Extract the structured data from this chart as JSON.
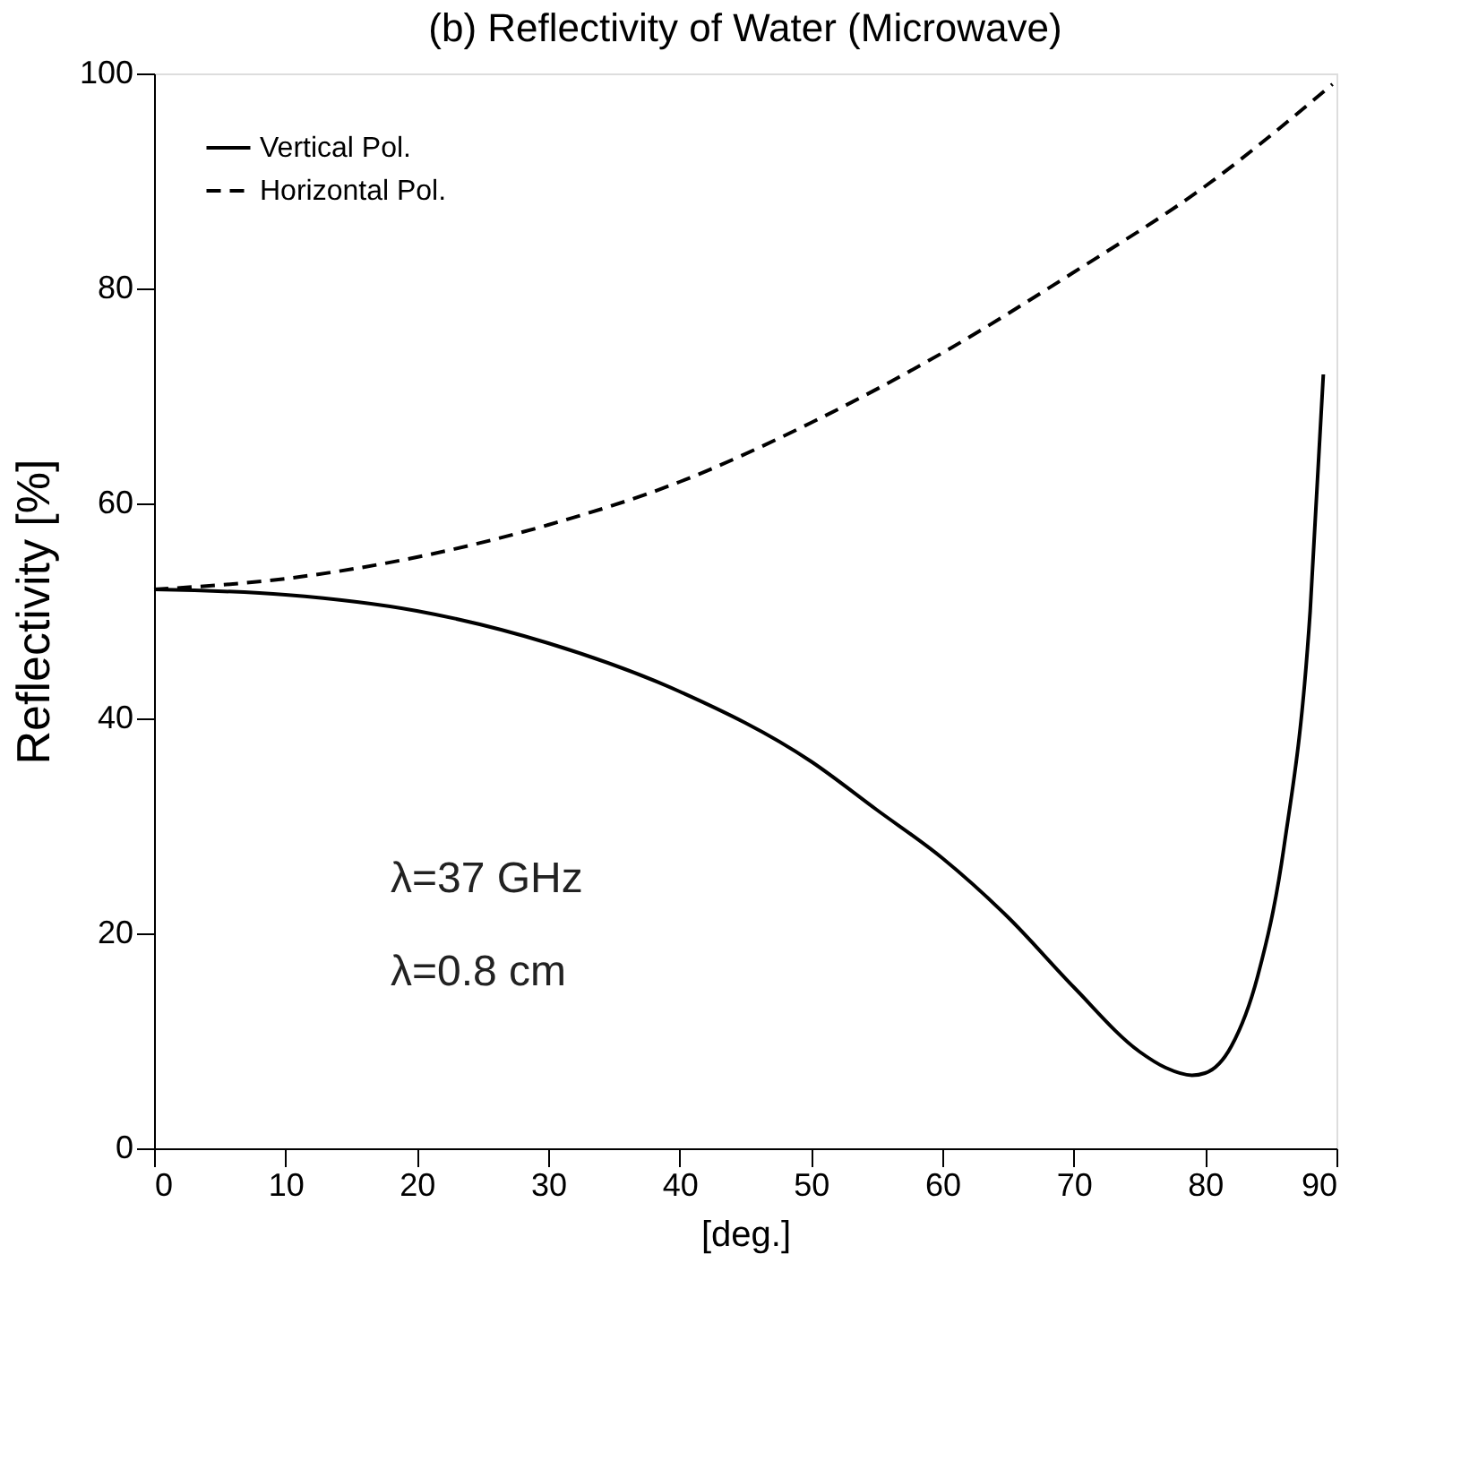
{
  "chart_data": {
    "type": "line",
    "title": "(b) Reflectivity of Water (Microwave)",
    "xlabel": "[deg.]",
    "ylabel": "Reflectivity [%]",
    "xlim": [
      0,
      90
    ],
    "ylim": [
      0,
      100
    ],
    "xticks": [
      0,
      10,
      20,
      30,
      40,
      50,
      60,
      70,
      80,
      90
    ],
    "yticks": [
      0,
      20,
      40,
      60,
      80,
      100
    ],
    "grid": false,
    "legend": "top left",
    "marker": "none",
    "annotations": [
      "λ=37 GHz",
      "λ=0.8 cm"
    ],
    "series": [
      {
        "name": "Vertical Pol.",
        "color": "#000000",
        "line_style": "solid",
        "x": [
          0,
          10,
          20,
          30,
          40,
          50,
          55,
          60,
          65,
          70,
          75,
          77,
          79,
          80,
          82,
          84,
          86,
          88,
          89
        ],
        "values": [
          52,
          51.5,
          50,
          47,
          42.5,
          36,
          31.5,
          27,
          21.5,
          15,
          9,
          7.5,
          6.8,
          7,
          9.5,
          16,
          28,
          50,
          72
        ]
      },
      {
        "name": "Horizontal Pol.",
        "color": "#000000",
        "line_style": "dashed",
        "x": [
          0,
          10,
          20,
          30,
          40,
          50,
          60,
          70,
          80,
          89.7
        ],
        "values": [
          52,
          53,
          55,
          58,
          62,
          67.5,
          74,
          81.5,
          89.5,
          99
        ]
      }
    ]
  }
}
